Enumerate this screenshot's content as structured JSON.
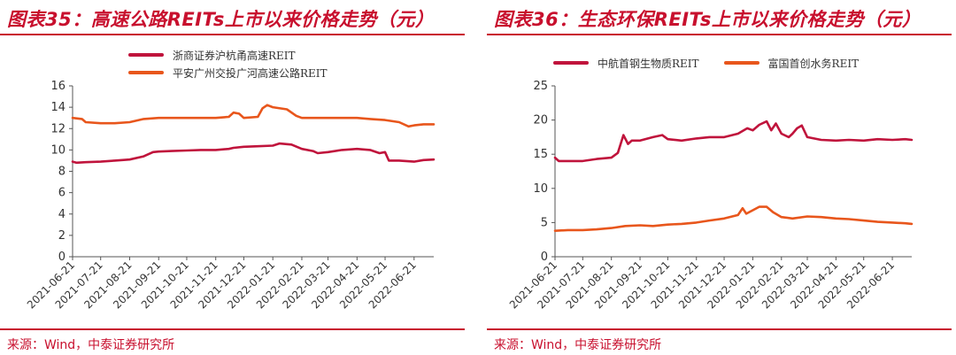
{
  "left_panel": {
    "title": "图表35：高速公路REITs上市以来价格走势（元）",
    "source": "来源：Wind，中泰证券研究所"
  },
  "right_panel": {
    "title": "图表36：生态环保REITs上市以来价格走势（元）",
    "source": "来源：Wind，中泰证券研究所"
  },
  "chart_data": [
    {
      "type": "line",
      "title": "图表35：高速公路REITs上市以来价格走势（元）",
      "xlabel": "",
      "ylabel": "",
      "ylim": [
        0,
        16
      ],
      "yticks": [
        0,
        2,
        4,
        6,
        8,
        10,
        12,
        14,
        16
      ],
      "x_tick_labels": [
        "2021-06-21",
        "2021-07-21",
        "2021-08-21",
        "2021-09-21",
        "2021-10-21",
        "2021-11-21",
        "2021-12-21",
        "2022-01-21",
        "2022-02-21",
        "2022-03-21",
        "2022-04-21",
        "2022-05-21",
        "2022-06-21"
      ],
      "xlim": [
        "2021-06-21",
        "2022-07-12"
      ],
      "grid": false,
      "legend_position": "top",
      "series": [
        {
          "name": "浙商证券沪杭甬高速REIT",
          "color": "#c0143c",
          "x": [
            "2021-06-21",
            "2021-06-25",
            "2021-07-05",
            "2021-07-21",
            "2021-08-05",
            "2021-08-21",
            "2021-09-05",
            "2021-09-15",
            "2021-09-21",
            "2021-10-05",
            "2021-10-21",
            "2021-11-05",
            "2021-11-21",
            "2021-12-05",
            "2021-12-10",
            "2021-12-21",
            "2022-01-05",
            "2022-01-21",
            "2022-01-28",
            "2022-02-10",
            "2022-02-21",
            "2022-03-05",
            "2022-03-10",
            "2022-03-21",
            "2022-04-05",
            "2022-04-21",
            "2022-05-05",
            "2022-05-15",
            "2022-05-21",
            "2022-05-25",
            "2022-06-05",
            "2022-06-21",
            "2022-07-01",
            "2022-07-12"
          ],
          "y": [
            8.9,
            8.8,
            8.85,
            8.9,
            9.0,
            9.1,
            9.4,
            9.8,
            9.85,
            9.9,
            9.95,
            10.0,
            10.0,
            10.1,
            10.2,
            10.3,
            10.35,
            10.4,
            10.6,
            10.5,
            10.1,
            9.9,
            9.7,
            9.8,
            10.0,
            10.1,
            10.0,
            9.7,
            9.8,
            9.0,
            9.0,
            8.9,
            9.05,
            9.1
          ]
        },
        {
          "name": "平安广州交投广河高速公路REIT",
          "color": "#e8561c",
          "x": [
            "2021-06-21",
            "2021-07-01",
            "2021-07-05",
            "2021-07-21",
            "2021-08-05",
            "2021-08-21",
            "2021-09-05",
            "2021-09-21",
            "2021-10-05",
            "2021-10-21",
            "2021-11-05",
            "2021-11-21",
            "2021-12-05",
            "2021-12-10",
            "2021-12-16",
            "2021-12-21",
            "2022-01-05",
            "2022-01-10",
            "2022-01-15",
            "2022-01-21",
            "2022-02-05",
            "2022-02-15",
            "2022-02-21",
            "2022-03-05",
            "2022-03-21",
            "2022-04-05",
            "2022-04-21",
            "2022-05-05",
            "2022-05-21",
            "2022-06-05",
            "2022-06-15",
            "2022-06-21",
            "2022-07-01",
            "2022-07-12"
          ],
          "y": [
            13.0,
            12.9,
            12.6,
            12.5,
            12.5,
            12.6,
            12.9,
            13.0,
            13.0,
            13.0,
            13.0,
            13.0,
            13.1,
            13.5,
            13.4,
            13.0,
            13.1,
            13.9,
            14.2,
            14.0,
            13.8,
            13.2,
            13.0,
            13.0,
            13.0,
            13.0,
            13.0,
            12.9,
            12.8,
            12.6,
            12.2,
            12.3,
            12.4,
            12.4
          ]
        }
      ]
    },
    {
      "type": "line",
      "title": "图表36：生态环保REITs上市以来价格走势（元）",
      "xlabel": "",
      "ylabel": "",
      "ylim": [
        0,
        25
      ],
      "yticks": [
        0,
        5,
        10,
        15,
        20,
        25
      ],
      "x_tick_labels": [
        "2021-06-21",
        "2021-07-21",
        "2021-08-21",
        "2021-09-21",
        "2021-10-21",
        "2021-11-21",
        "2021-12-21",
        "2022-01-21",
        "2022-02-21",
        "2022-03-21",
        "2022-04-21",
        "2022-05-21",
        "2022-06-21"
      ],
      "xlim": [
        "2021-06-21",
        "2022-07-12"
      ],
      "grid": false,
      "legend_position": "top",
      "series": [
        {
          "name": "中航首钢生物质REIT",
          "color": "#c0143c",
          "x": [
            "2021-06-21",
            "2021-06-25",
            "2021-07-05",
            "2021-07-21",
            "2021-08-05",
            "2021-08-21",
            "2021-08-28",
            "2021-09-03",
            "2021-09-08",
            "2021-09-12",
            "2021-09-21",
            "2021-10-05",
            "2021-10-15",
            "2021-10-21",
            "2021-11-05",
            "2021-11-21",
            "2021-12-05",
            "2021-12-21",
            "2022-01-05",
            "2022-01-15",
            "2022-01-21",
            "2022-01-28",
            "2022-02-05",
            "2022-02-10",
            "2022-02-15",
            "2022-02-21",
            "2022-03-01",
            "2022-03-05",
            "2022-03-10",
            "2022-03-15",
            "2022-03-21",
            "2022-04-05",
            "2022-04-21",
            "2022-05-05",
            "2022-05-21",
            "2022-06-05",
            "2022-06-21",
            "2022-07-05",
            "2022-07-12"
          ],
          "y": [
            14.5,
            14.0,
            14.0,
            14.0,
            14.3,
            14.5,
            15.2,
            17.8,
            16.5,
            17.0,
            17.0,
            17.5,
            17.8,
            17.2,
            17.0,
            17.3,
            17.5,
            17.5,
            18.0,
            18.8,
            18.5,
            19.3,
            19.8,
            18.5,
            19.5,
            18.0,
            17.5,
            18.0,
            18.8,
            19.2,
            17.5,
            17.1,
            17.0,
            17.1,
            17.0,
            17.2,
            17.1,
            17.2,
            17.1
          ]
        },
        {
          "name": "富国首创水务REIT",
          "color": "#e8561c",
          "x": [
            "2021-06-21",
            "2021-07-05",
            "2021-07-21",
            "2021-08-05",
            "2021-08-21",
            "2021-09-05",
            "2021-09-21",
            "2021-10-05",
            "2021-10-21",
            "2021-11-05",
            "2021-11-21",
            "2021-12-05",
            "2021-12-21",
            "2022-01-05",
            "2022-01-10",
            "2022-01-14",
            "2022-01-21",
            "2022-01-28",
            "2022-02-05",
            "2022-02-12",
            "2022-02-21",
            "2022-03-05",
            "2022-03-21",
            "2022-04-05",
            "2022-04-21",
            "2022-05-05",
            "2022-05-21",
            "2022-06-05",
            "2022-06-21",
            "2022-07-05",
            "2022-07-12"
          ],
          "y": [
            3.8,
            3.9,
            3.9,
            4.0,
            4.2,
            4.5,
            4.6,
            4.5,
            4.7,
            4.8,
            5.0,
            5.3,
            5.6,
            6.1,
            7.1,
            6.3,
            6.8,
            7.3,
            7.3,
            6.5,
            5.8,
            5.6,
            5.9,
            5.8,
            5.6,
            5.5,
            5.3,
            5.1,
            5.0,
            4.9,
            4.8
          ]
        }
      ]
    }
  ]
}
